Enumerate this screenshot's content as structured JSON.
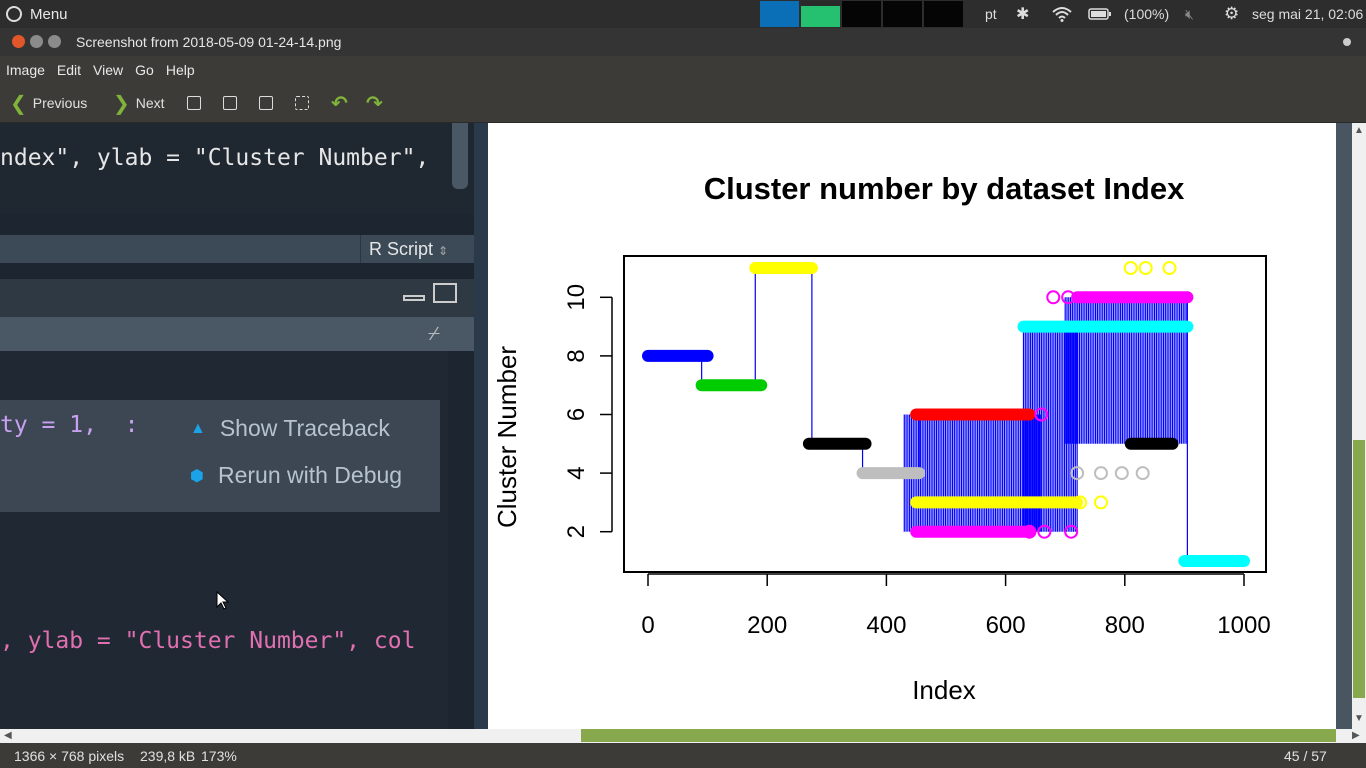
{
  "panel": {
    "menu_label": "Menu",
    "lang": "pt",
    "battery": "(100%)",
    "datetime": "seg mai 21, 02:06"
  },
  "window": {
    "title": "Screenshot from 2018-05-09 01-24-14.png"
  },
  "menubar": [
    "Image",
    "Edit",
    "View",
    "Go",
    "Help"
  ],
  "toolbar": {
    "previous": "Previous",
    "next": "Next"
  },
  "screenshot_content": {
    "code_top": "ndex\", ylab = \"Cluster Number\",",
    "script_type": "R Script",
    "code_error": "ty = 1,  :",
    "show_traceback": "Show Traceback",
    "rerun_debug": "Rerun with Debug",
    "code_bottom": ", ylab = \"Cluster Number\", col"
  },
  "chart_data": {
    "type": "line",
    "title": "Cluster number by dataset Index",
    "xlabel": "Index",
    "ylabel": "Cluster Number",
    "xlim": [
      0,
      1000
    ],
    "ylim": [
      1,
      11
    ],
    "x_ticks": [
      "0",
      "200",
      "400",
      "600",
      "800",
      "1000"
    ],
    "y_ticks": [
      "2",
      "4",
      "6",
      "8",
      "10"
    ],
    "segments": [
      {
        "color": "#0000ff",
        "x": [
          0,
          100
        ],
        "y": 8
      },
      {
        "color": "#00cc00",
        "x": [
          90,
          190
        ],
        "y": 7
      },
      {
        "color": "#ffff00",
        "x": [
          180,
          275
        ],
        "y": 11
      },
      {
        "color": "#000000",
        "x": [
          270,
          365
        ],
        "y": 5
      },
      {
        "color": "#bebebe",
        "x": [
          360,
          455
        ],
        "y": 4
      },
      {
        "color": "#ff0000",
        "x": [
          450,
          640
        ],
        "y": 6
      },
      {
        "color": "#ff00ff",
        "x": [
          450,
          640
        ],
        "y": 2
      },
      {
        "color": "#ffff00",
        "x": [
          450,
          720
        ],
        "y": 3
      },
      {
        "color": "#00ffff",
        "x": [
          630,
          905
        ],
        "y": 9
      },
      {
        "color": "#ff00ff",
        "x": [
          720,
          905
        ],
        "y": 10
      },
      {
        "color": "#000000",
        "x": [
          810,
          880
        ],
        "y": 5
      },
      {
        "color": "#00ffff",
        "x": [
          900,
          1000
        ],
        "y": 1
      }
    ]
  },
  "status": {
    "dimensions": "1366 × 768 pixels",
    "size": "239,8 kB",
    "zoom": "173%",
    "position": "45 / 57"
  }
}
